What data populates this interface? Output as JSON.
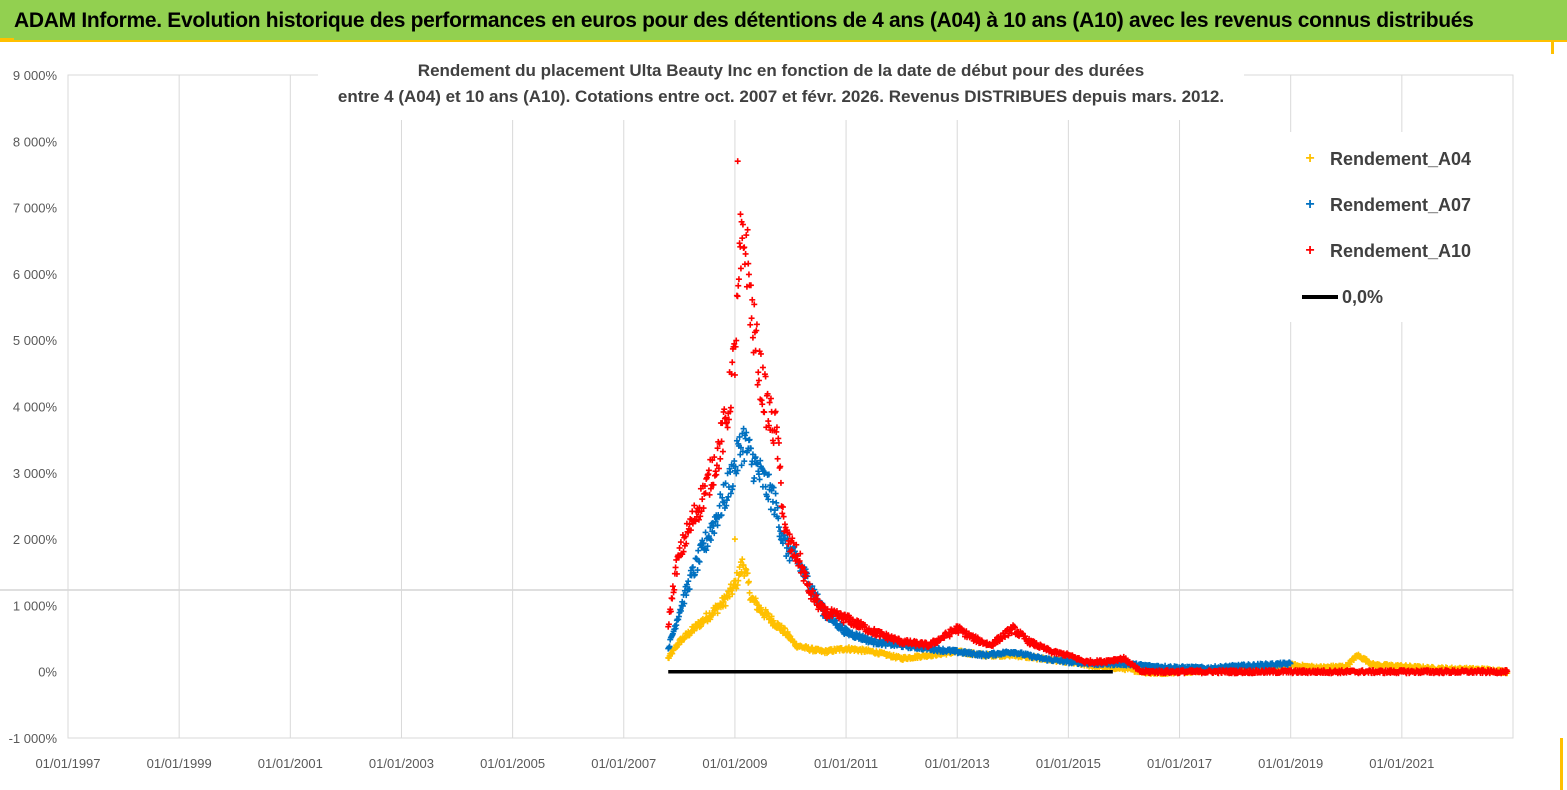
{
  "banner": {
    "title": "ADAM Informe. Evolution historique des performances en euros pour des détentions de 4 ans (A04) à 10 ans (A10) avec les revenus connus distribués"
  },
  "colors": {
    "banner_bg": "#92d050",
    "banner_border": "#ffc000",
    "a04": "#ffc000",
    "a07": "#0070c0",
    "a10": "#ff0000",
    "zero_line": "#000000"
  },
  "chart_data": {
    "type": "scatter",
    "title_line1": "Rendement du placement Ulta Beauty Inc en fonction de la date de début pour des durées",
    "title_line2": "entre 4 (A04) et 10 ans (A10). Cotations entre oct. 2007 et févr. 2026. Revenus DISTRIBUES depuis mars. 2012.",
    "xlabel": "",
    "ylabel": "",
    "x_range": [
      "1997-01-01",
      "2023-01-01"
    ],
    "y_range": [
      -1000,
      9000
    ],
    "y_unit": "%",
    "y_ticks": [
      "-1 000%",
      "0%",
      "1 000%",
      "2 000%",
      "3 000%",
      "4 000%",
      "5 000%",
      "6 000%",
      "7 000%",
      "8 000%",
      "9 000%"
    ],
    "y_tick_values": [
      -1000,
      0,
      1000,
      2000,
      3000,
      4000,
      5000,
      6000,
      7000,
      8000,
      9000
    ],
    "x_ticks": [
      "01/01/1997",
      "01/01/1999",
      "01/01/2001",
      "01/01/2003",
      "01/01/2005",
      "01/01/2007",
      "01/01/2009",
      "01/01/2011",
      "01/01/2013",
      "01/01/2015",
      "01/01/2017",
      "01/01/2019",
      "01/01/2021"
    ],
    "x_tick_years": [
      1997,
      1999,
      2001,
      2003,
      2005,
      2007,
      2009,
      2011,
      2013,
      2015,
      2017,
      2019,
      2021
    ],
    "grid": "vertical",
    "legend_position": "top-right",
    "series": [
      {
        "name": "Rendement_A04",
        "color": "#ffc000",
        "marker": "+",
        "x": [
          2007.8,
          2008.0,
          2008.2,
          2008.4,
          2008.6,
          2008.8,
          2009.0,
          2009.15,
          2009.3,
          2009.5,
          2009.7,
          2009.9,
          2010.1,
          2010.3,
          2010.6,
          2011.0,
          2011.5,
          2012.0,
          2012.5,
          2013.0,
          2013.5,
          2014.0,
          2014.5,
          2015.0,
          2015.5,
          2016.0,
          2016.5,
          2017.0,
          2017.5,
          2018.0,
          2018.5,
          2019.0,
          2019.5,
          2020.0,
          2020.2,
          2020.5,
          2021.0,
          2021.5,
          2022.0,
          2022.5,
          2022.9
        ],
        "y": [
          200,
          450,
          600,
          750,
          900,
          1050,
          1300,
          1650,
          1100,
          900,
          750,
          600,
          400,
          350,
          300,
          350,
          300,
          200,
          250,
          300,
          250,
          250,
          200,
          150,
          80,
          50,
          -20,
          0,
          20,
          30,
          50,
          100,
          60,
          80,
          250,
          100,
          80,
          50,
          40,
          30,
          0
        ]
      },
      {
        "name": "Rendement_A07",
        "color": "#0070c0",
        "marker": "+",
        "x": [
          2007.8,
          2008.0,
          2008.2,
          2008.4,
          2008.6,
          2008.8,
          2009.0,
          2009.15,
          2009.3,
          2009.5,
          2009.7,
          2009.9,
          2010.1,
          2010.3,
          2010.6,
          2011.0,
          2011.5,
          2012.0,
          2012.5,
          2013.0,
          2013.5,
          2014.0,
          2014.5,
          2015.0,
          2015.5,
          2016.0,
          2016.5,
          2017.0,
          2017.5,
          2018.0,
          2018.5,
          2019.0
        ],
        "y": [
          350,
          900,
          1400,
          1800,
          2200,
          2600,
          3100,
          3500,
          3200,
          2900,
          2600,
          1900,
          1700,
          1400,
          900,
          600,
          450,
          400,
          350,
          300,
          250,
          300,
          200,
          150,
          120,
          120,
          80,
          60,
          50,
          80,
          100,
          120
        ]
      },
      {
        "name": "Rendement_A10",
        "color": "#ff0000",
        "marker": "+",
        "x": [
          2007.8,
          2007.95,
          2008.1,
          2008.3,
          2008.5,
          2008.7,
          2008.85,
          2009.0,
          2009.1,
          2009.2,
          2009.3,
          2009.45,
          2009.6,
          2009.75,
          2009.9,
          2010.0,
          2010.15,
          2010.35,
          2010.6,
          2011.0,
          2011.5,
          2012.0,
          2012.5,
          2013.0,
          2013.3,
          2013.6,
          2014.0,
          2014.3,
          2014.7,
          2015.0,
          2015.3,
          2015.6,
          2016.0,
          2016.3,
          2016.7,
          2017.0,
          2018.0,
          2019.0,
          2020.0,
          2021.0,
          2022.0,
          2022.9
        ],
        "y": [
          700,
          1600,
          2000,
          2400,
          2800,
          3300,
          3800,
          4800,
          6200,
          6500,
          5400,
          4500,
          3900,
          3600,
          2100,
          1900,
          1700,
          1200,
          900,
          800,
          600,
          450,
          400,
          650,
          500,
          400,
          650,
          450,
          300,
          250,
          150,
          150,
          200,
          0,
          0,
          0,
          0,
          0,
          0,
          0,
          0,
          0
        ]
      },
      {
        "name": "0,0%",
        "color": "#000000",
        "marker": "line",
        "x": [
          2007.8,
          2015.8
        ],
        "y": [
          0,
          0
        ]
      }
    ]
  }
}
